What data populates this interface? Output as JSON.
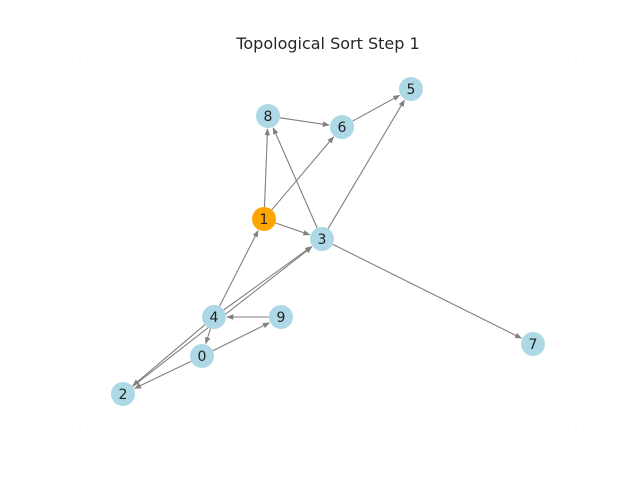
{
  "figure": {
    "title": "Topological Sort Step 1"
  },
  "graph": {
    "nodes": [
      {
        "id": "0",
        "label": "0",
        "status": "pending"
      },
      {
        "id": "1",
        "label": "1",
        "status": "current"
      },
      {
        "id": "2",
        "label": "2",
        "status": "pending"
      },
      {
        "id": "3",
        "label": "3",
        "status": "pending"
      },
      {
        "id": "4",
        "label": "4",
        "status": "pending"
      },
      {
        "id": "5",
        "label": "5",
        "status": "pending"
      },
      {
        "id": "6",
        "label": "6",
        "status": "pending"
      },
      {
        "id": "7",
        "label": "7",
        "status": "pending"
      },
      {
        "id": "8",
        "label": "8",
        "status": "pending"
      },
      {
        "id": "9",
        "label": "9",
        "status": "pending"
      }
    ],
    "edges": [
      {
        "from": "1",
        "to": "8"
      },
      {
        "from": "1",
        "to": "6"
      },
      {
        "from": "1",
        "to": "3"
      },
      {
        "from": "8",
        "to": "6"
      },
      {
        "from": "6",
        "to": "5"
      },
      {
        "from": "3",
        "to": "5"
      },
      {
        "from": "3",
        "to": "8"
      },
      {
        "from": "3",
        "to": "7"
      },
      {
        "from": "4",
        "to": "1"
      },
      {
        "from": "4",
        "to": "3"
      },
      {
        "from": "4",
        "to": "0"
      },
      {
        "from": "4",
        "to": "2"
      },
      {
        "from": "9",
        "to": "4"
      },
      {
        "from": "0",
        "to": "9"
      },
      {
        "from": "0",
        "to": "2"
      },
      {
        "from": "2",
        "to": "3"
      }
    ],
    "colors": {
      "current": "#ffa500",
      "pending": "#add8e6",
      "edge": "#808080"
    }
  }
}
